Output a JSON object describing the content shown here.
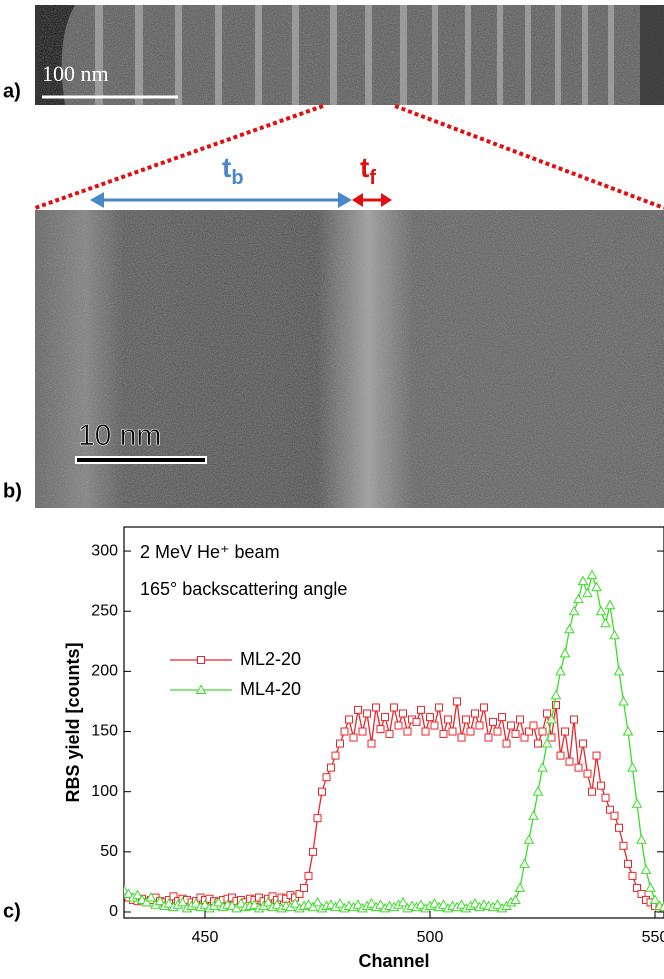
{
  "panels": {
    "a": {
      "label": "a)",
      "scale_bar": "100 nm"
    },
    "b": {
      "label": "b)",
      "scale_bar": "10 nm",
      "tb": {
        "main": "t",
        "sub": "b"
      },
      "tf": {
        "main": "t",
        "sub": "f"
      }
    },
    "c": {
      "label": "c)"
    }
  },
  "chart_data": {
    "type": "line",
    "annotations": [
      "2 MeV He⁺ beam",
      "165° backscattering angle"
    ],
    "x_label": "Channel",
    "y_label": "RBS yield [counts]",
    "xlim": [
      432,
      552
    ],
    "ylim": [
      -5,
      320
    ],
    "xticks": [
      450,
      500,
      550
    ],
    "yticks": [
      0,
      50,
      100,
      150,
      200,
      250,
      300
    ],
    "x": [
      432,
      433,
      434,
      435,
      436,
      437,
      438,
      439,
      440,
      441,
      442,
      443,
      444,
      445,
      446,
      447,
      448,
      449,
      450,
      451,
      452,
      453,
      454,
      455,
      456,
      457,
      458,
      459,
      460,
      461,
      462,
      463,
      464,
      465,
      466,
      467,
      468,
      469,
      470,
      471,
      472,
      473,
      474,
      475,
      476,
      477,
      478,
      479,
      480,
      481,
      482,
      483,
      484,
      485,
      486,
      487,
      488,
      489,
      490,
      491,
      492,
      493,
      494,
      495,
      496,
      497,
      498,
      499,
      500,
      501,
      502,
      503,
      504,
      505,
      506,
      507,
      508,
      509,
      510,
      511,
      512,
      513,
      514,
      515,
      516,
      517,
      518,
      519,
      520,
      521,
      522,
      523,
      524,
      525,
      526,
      527,
      528,
      529,
      530,
      531,
      532,
      533,
      534,
      535,
      536,
      537,
      538,
      539,
      540,
      541,
      542,
      543,
      544,
      545,
      546,
      547,
      548,
      549,
      550,
      551,
      552
    ],
    "series": [
      {
        "name": "ML2-20",
        "color": "#e8262a",
        "marker": "square",
        "values": [
          14,
          12,
          10,
          9,
          11,
          8,
          10,
          12,
          9,
          8,
          10,
          13,
          9,
          11,
          10,
          8,
          9,
          12,
          10,
          11,
          9,
          8,
          10,
          11,
          12,
          9,
          10,
          8,
          11,
          10,
          12,
          9,
          11,
          13,
          10,
          12,
          11,
          14,
          12,
          15,
          20,
          30,
          50,
          78,
          100,
          112,
          120,
          130,
          140,
          150,
          160,
          145,
          168,
          150,
          165,
          140,
          170,
          152,
          162,
          148,
          170,
          155,
          165,
          150,
          160,
          158,
          168,
          150,
          162,
          155,
          170,
          148,
          160,
          150,
          175,
          145,
          160,
          150,
          165,
          155,
          170,
          145,
          158,
          150,
          162,
          140,
          155,
          148,
          160,
          145,
          150,
          155,
          140,
          150,
          165,
          145,
          172,
          130,
          150,
          125,
          160,
          120,
          140,
          115,
          100,
          130,
          105,
          95,
          85,
          80,
          70,
          55,
          40,
          30,
          20,
          15,
          10,
          8,
          5,
          3,
          3
        ]
      },
      {
        "name": "ML4-20",
        "color": "#3ddc2a",
        "marker": "triangle",
        "values": [
          18,
          15,
          12,
          14,
          10,
          8,
          12,
          6,
          9,
          5,
          7,
          4,
          6,
          8,
          3,
          5,
          7,
          4,
          6,
          3,
          5,
          8,
          4,
          6,
          5,
          3,
          7,
          4,
          5,
          6,
          3,
          5,
          8,
          4,
          6,
          3,
          5,
          4,
          7,
          3,
          5,
          6,
          4,
          8,
          3,
          5,
          6,
          4,
          7,
          3,
          5,
          4,
          6,
          3,
          5,
          7,
          4,
          6,
          3,
          5,
          4,
          6,
          8,
          3,
          5,
          4,
          6,
          3,
          5,
          7,
          4,
          6,
          3,
          5,
          4,
          6,
          3,
          5,
          7,
          4,
          6,
          5,
          4,
          6,
          3,
          5,
          8,
          10,
          20,
          40,
          60,
          80,
          100,
          120,
          140,
          160,
          180,
          200,
          215,
          235,
          250,
          260,
          275,
          265,
          280,
          270,
          250,
          240,
          255,
          230,
          200,
          175,
          150,
          120,
          90,
          60,
          35,
          20,
          10,
          5,
          4
        ]
      }
    ]
  }
}
